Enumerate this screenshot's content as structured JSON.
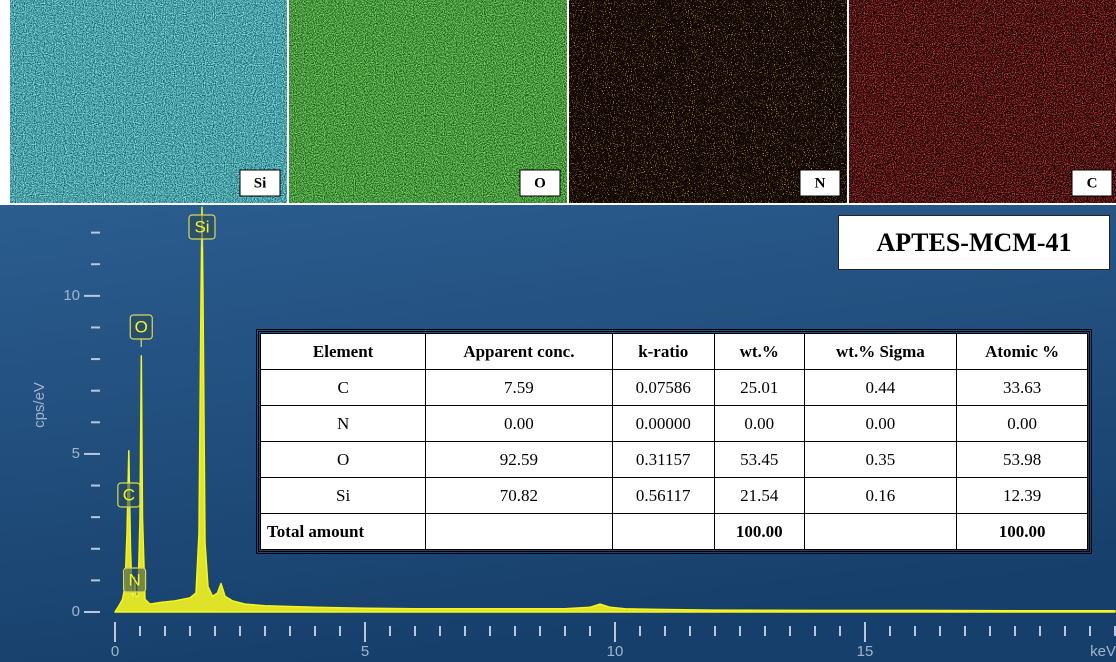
{
  "maps": [
    "Si",
    "O",
    "N",
    "C"
  ],
  "chart_data": {
    "type": "line",
    "title": "APTES-MCM-41",
    "ylabel": "cps/eV",
    "xlabel": "keV",
    "color": "#f5f520",
    "x": [
      0,
      0.08,
      0.15,
      0.2,
      0.24,
      0.277,
      0.31,
      0.34,
      0.37,
      0.392,
      0.42,
      0.46,
      0.5,
      0.525,
      0.55,
      0.6,
      0.7,
      0.9,
      1.2,
      1.5,
      1.62,
      1.68,
      1.72,
      1.74,
      1.76,
      1.8,
      1.86,
      1.95,
      2.05,
      2.12,
      2.2,
      2.35,
      2.6,
      3,
      4,
      5,
      6,
      7,
      8,
      9,
      9.5,
      9.7,
      9.9,
      10.2,
      11,
      12,
      14,
      16,
      18,
      20
    ],
    "values": [
      0,
      0.2,
      0.4,
      0.8,
      2.5,
      5.1,
      2.0,
      0.6,
      0.5,
      1.1,
      0.5,
      0.5,
      3.0,
      8.1,
      3.0,
      0.4,
      0.25,
      0.3,
      0.35,
      0.45,
      0.6,
      2.5,
      10,
      12.8,
      10,
      2.2,
      0.8,
      0.5,
      0.6,
      0.9,
      0.5,
      0.35,
      0.25,
      0.2,
      0.15,
      0.12,
      0.1,
      0.1,
      0.1,
      0.1,
      0.15,
      0.25,
      0.15,
      0.1,
      0.08,
      0.06,
      0.05,
      0.05,
      0.04,
      0.04
    ],
    "peaks": [
      {
        "label": "C",
        "x": 0.277
      },
      {
        "label": "N",
        "x": 0.392
      },
      {
        "label": "O",
        "x": 0.525
      },
      {
        "label": "Si",
        "x": 1.74
      }
    ],
    "xlim": [
      0,
      20
    ],
    "xticks": [
      0,
      5,
      10,
      15
    ],
    "xminorticks": [
      0.5,
      1,
      1.5,
      2,
      2.5,
      3,
      3.5,
      4,
      4.5,
      5.5,
      6,
      6.5,
      7,
      7.5,
      8,
      8.5,
      9,
      9.5,
      10.5,
      11,
      11.5,
      12,
      12.5,
      13,
      13.5,
      14,
      14.5,
      15.5,
      16,
      16.5,
      17,
      17.5,
      18,
      18.5,
      19,
      19.5,
      20
    ],
    "ylim": [
      0,
      13
    ],
    "yticks": [
      0,
      5,
      10
    ],
    "yminorticks": [
      1,
      2,
      3,
      4,
      6,
      7,
      8,
      9,
      11,
      12
    ]
  },
  "table": {
    "header": [
      "Element",
      "Apparent conc.",
      "k-ratio",
      "wt.%",
      "wt.% Sigma",
      "Atomic %"
    ],
    "rows": [
      [
        "C",
        "7.59",
        "0.07586",
        "25.01",
        "0.44",
        "33.63"
      ],
      [
        "N",
        "0.00",
        "0.00000",
        "0.00",
        "0.00",
        "0.00"
      ],
      [
        "O",
        "92.59",
        "0.31157",
        "53.45",
        "0.35",
        "53.98"
      ],
      [
        "Si",
        "70.82",
        "0.56117",
        "21.54",
        "0.16",
        "12.39"
      ],
      [
        "Total amount",
        null,
        null,
        "100.00",
        null,
        "100.00"
      ]
    ]
  }
}
